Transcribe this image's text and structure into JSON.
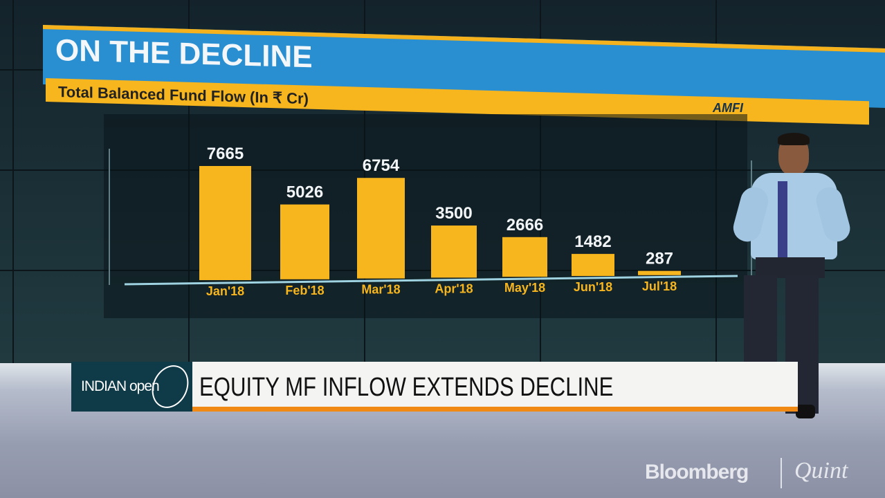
{
  "graphic": {
    "title": "ON THE DECLINE",
    "subtitle": "Total Balanced Fund Flow (In ₹ Cr)",
    "source": "AMFI"
  },
  "chart_data": {
    "type": "bar",
    "title": "ON THE DECLINE",
    "subtitle": "Total Balanced Fund Flow (In ₹ Cr)",
    "categories": [
      "Jan'18",
      "Feb'18",
      "Mar'18",
      "Apr'18",
      "May'18",
      "Jun'18",
      "Jul'18"
    ],
    "values": [
      7665,
      5026,
      6754,
      3500,
      2666,
      1482,
      287
    ],
    "data_labels": [
      "7665",
      "5026",
      "6754",
      "3500",
      "2666",
      "1482",
      "287"
    ],
    "bar_color": "#f7b51e",
    "grid": false,
    "ylim": [
      0,
      8000
    ]
  },
  "ticker": {
    "show_logo": "INDIAN open",
    "headline": "EQUITY MF INFLOW EXTENDS DECLINE",
    "accent": "#f08a14"
  },
  "brand": {
    "left": "Bloomberg",
    "right": "Quint"
  }
}
